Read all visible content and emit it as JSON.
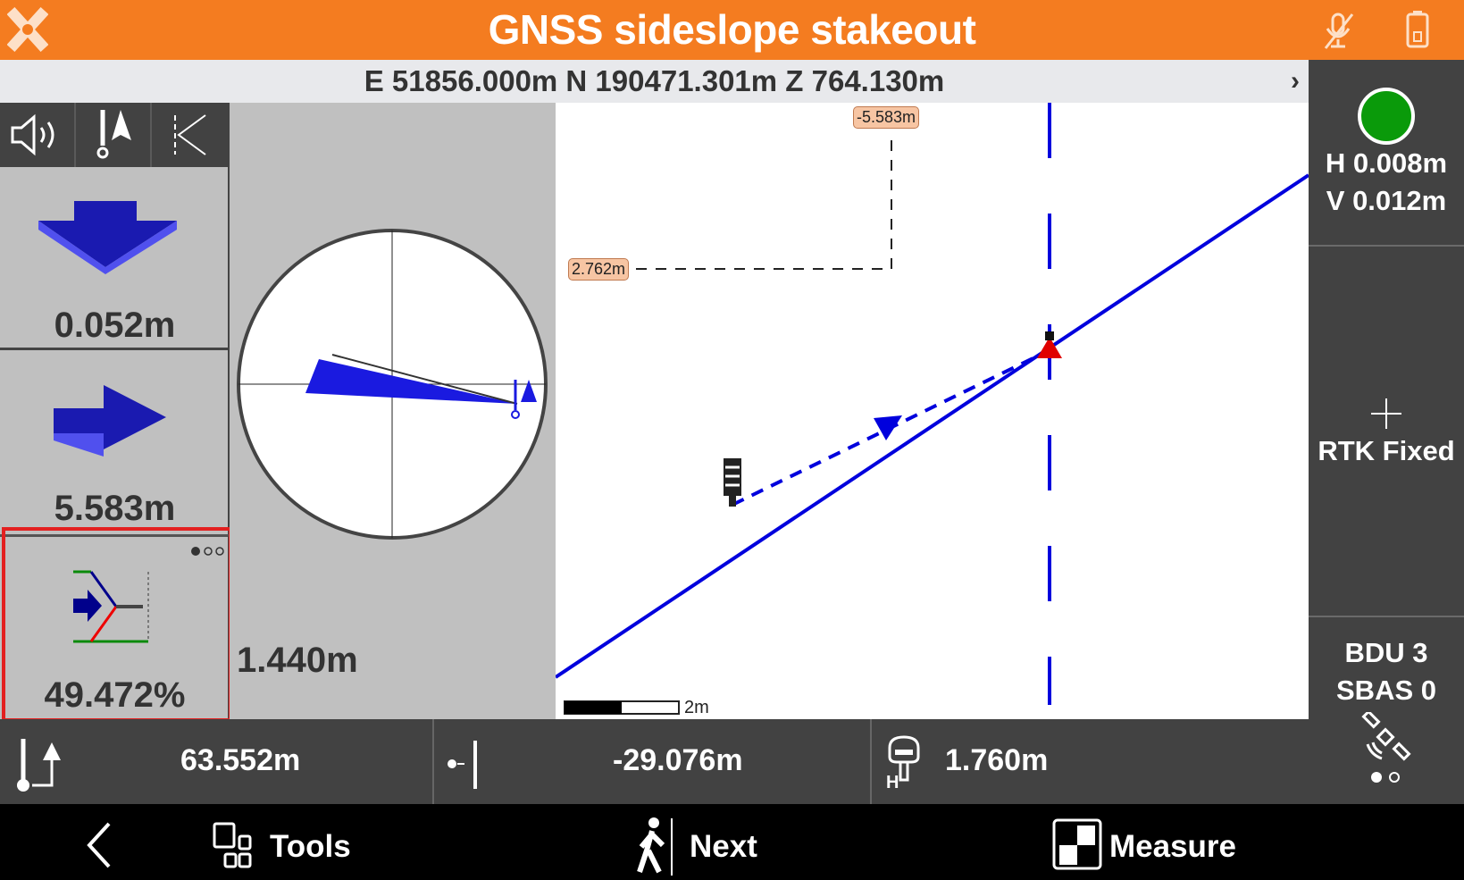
{
  "header": {
    "title": "GNSS sideslope stakeout",
    "logo": "x-logo-icon",
    "icons": [
      "mic-off-icon",
      "battery-icon"
    ],
    "color": "#f47c20"
  },
  "coords": {
    "text": "E 51856.000m N 190471.301m Z 764.130m"
  },
  "right_panel": {
    "status_color": "#0a9a0a",
    "h_precision": "H 0.008m",
    "v_precision": "V 0.012m",
    "fix": "RTK Fixed",
    "bdu": "BDU 3",
    "sbas": "SBAS 0"
  },
  "left": {
    "toolbar": [
      "speaker-icon",
      "north-point-icon",
      "slope-icon"
    ],
    "down_value": "0.052m",
    "right_value": "5.583m",
    "slope_value": "49.472%",
    "height_value": "1.440m"
  },
  "map": {
    "label_vertical": "-5.583m",
    "label_horizontal": "2.762m",
    "scale": "2m",
    "line_color": "#0000dd"
  },
  "bottom": {
    "distance": "63.552m",
    "offset": "-29.076m",
    "antenna_height": "1.760m",
    "antenna_h": "H"
  },
  "nav": {
    "tools": "Tools",
    "next": "Next",
    "measure": "Measure"
  }
}
